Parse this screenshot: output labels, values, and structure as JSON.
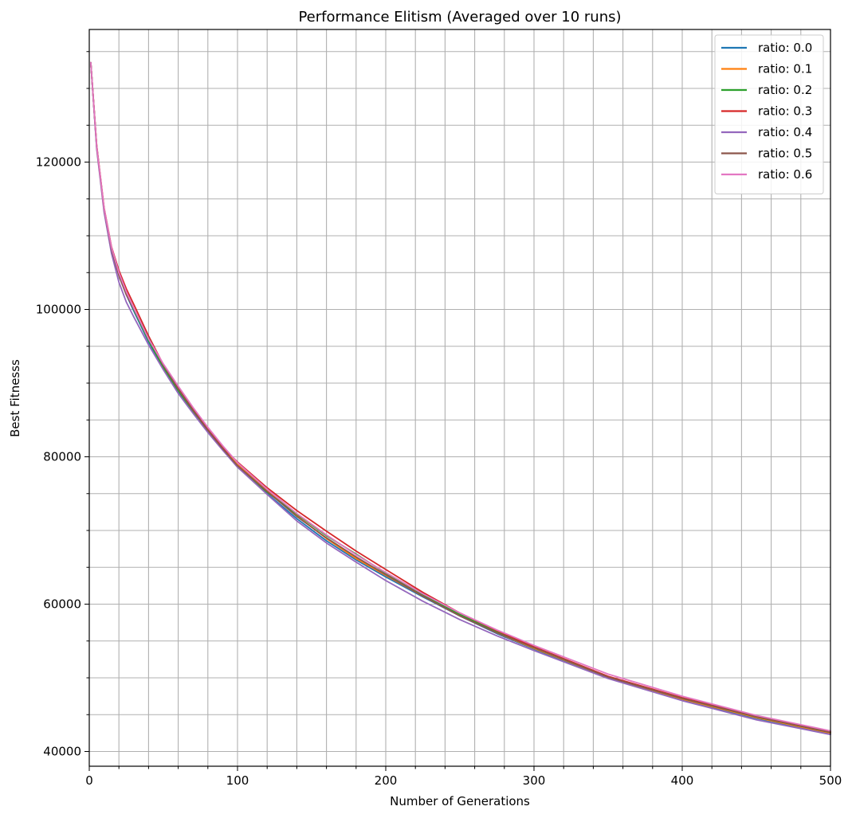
{
  "chart_data": {
    "type": "line",
    "title": "Performance Elitism (Averaged over 10 runs)",
    "xlabel": "Number of Generations",
    "ylabel": "Best Fitnesss",
    "xlim": [
      0,
      500
    ],
    "ylim": [
      38000,
      138000
    ],
    "xticks": [
      0,
      100,
      200,
      300,
      400,
      500
    ],
    "yticks": [
      40000,
      60000,
      80000,
      100000,
      120000
    ],
    "x_minor_step": 20,
    "y_minor_step": 5000,
    "grid": "major-and-minor",
    "legend_position": "top-right",
    "x": [
      1,
      5,
      10,
      15,
      20,
      25,
      30,
      40,
      50,
      60,
      70,
      80,
      90,
      100,
      120,
      140,
      160,
      180,
      200,
      225,
      250,
      275,
      300,
      350,
      400,
      450,
      500
    ],
    "series": [
      {
        "name": "ratio: 0.0",
        "color": "#1f77b4",
        "values": [
          133500,
          122000,
          113500,
          108000,
          104600,
          102000,
          99800,
          95600,
          92000,
          88800,
          86000,
          83400,
          81000,
          78800,
          75000,
          71600,
          68600,
          66000,
          63700,
          61000,
          58400,
          56000,
          53900,
          50000,
          47000,
          44500,
          42400
        ]
      },
      {
        "name": "ratio: 0.1",
        "color": "#ff7f0e",
        "values": [
          133500,
          122200,
          113600,
          108200,
          104900,
          102300,
          100100,
          95900,
          92300,
          89200,
          86400,
          83700,
          81200,
          79000,
          75400,
          72000,
          68900,
          66200,
          63900,
          61100,
          58500,
          56100,
          54000,
          50100,
          47100,
          44600,
          42500
        ]
      },
      {
        "name": "ratio: 0.2",
        "color": "#2ca02c",
        "values": [
          133500,
          122100,
          113500,
          108100,
          104800,
          102200,
          100000,
          95800,
          92100,
          89000,
          86200,
          83500,
          81000,
          78600,
          75200,
          72200,
          69300,
          66800,
          64200,
          61300,
          58600,
          56200,
          54100,
          50100,
          47200,
          44700,
          42600
        ]
      },
      {
        "name": "ratio: 0.3",
        "color": "#d62728",
        "values": [
          133500,
          122300,
          113800,
          108500,
          105300,
          102800,
          100700,
          96400,
          92500,
          89300,
          86400,
          83700,
          81300,
          79300,
          75800,
          72700,
          69900,
          67200,
          64700,
          61600,
          58800,
          56400,
          54200,
          50200,
          47300,
          44800,
          42700
        ]
      },
      {
        "name": "ratio: 0.4",
        "color": "#9467bd",
        "values": [
          133500,
          121800,
          113200,
          107600,
          103700,
          101000,
          99000,
          95200,
          91800,
          88600,
          85900,
          83300,
          80900,
          78600,
          74900,
          71300,
          68300,
          65700,
          63200,
          60400,
          57900,
          55700,
          53700,
          49900,
          46900,
          44300,
          42300
        ]
      },
      {
        "name": "ratio: 0.5",
        "color": "#8c564b",
        "values": [
          133500,
          122100,
          113600,
          108200,
          104600,
          102000,
          100100,
          96100,
          92400,
          89200,
          86300,
          83600,
          81100,
          78800,
          75300,
          71900,
          69000,
          66400,
          64000,
          61100,
          58400,
          56100,
          54100,
          50100,
          47200,
          44700,
          42600
        ]
      },
      {
        "name": "ratio: 0.6",
        "color": "#e377c2",
        "values": [
          133500,
          122200,
          113700,
          108400,
          105000,
          102400,
          100200,
          96000,
          92600,
          89600,
          86700,
          84000,
          81500,
          79200,
          75600,
          72300,
          69400,
          66700,
          64300,
          61400,
          58800,
          56500,
          54400,
          50500,
          47500,
          44900,
          42800
        ]
      }
    ]
  }
}
